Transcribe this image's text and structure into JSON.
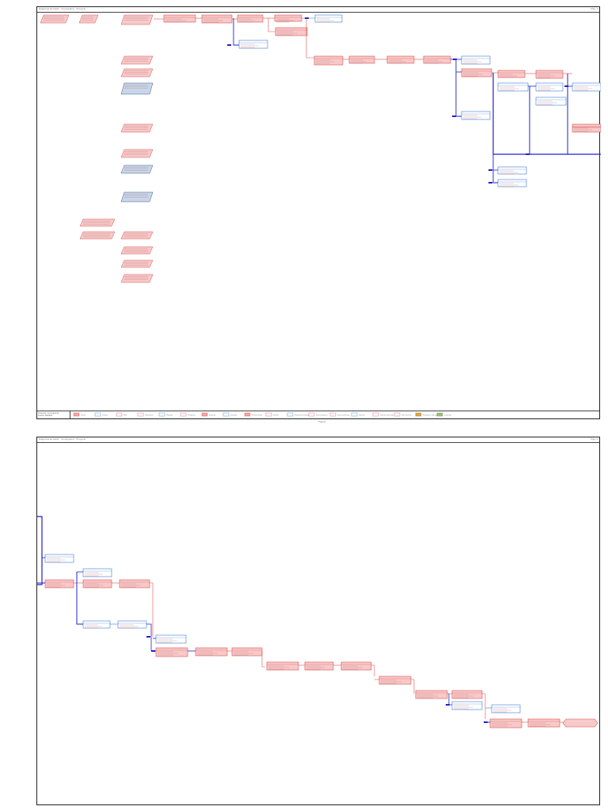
{
  "document": {
    "header_title": "Diagrama de Gantt · Cronograma · Proyecto",
    "page1_number": "Pág. 1",
    "page2_number": "Pág. 2",
    "footer_left_line1": "Proyecto: Cronograma",
    "footer_left_line2": "Fecha: 05/2019",
    "page_label": "Página"
  },
  "legend": [
    {
      "label": "Tarea",
      "color": "#f4a6a6"
    },
    {
      "label": "Crítica",
      "color": "#ffffff"
    },
    {
      "label": "Hito",
      "color": "#ffffff"
    },
    {
      "label": "Resumen",
      "color": "#ffffff"
    },
    {
      "label": "Manual",
      "color": "#ffffff"
    },
    {
      "label": "Progreso",
      "color": "#ffffff"
    },
    {
      "label": "Inactiva",
      "color": "#f4a6a6"
    },
    {
      "label": "Externa",
      "color": "#ffffff"
    },
    {
      "label": "Fecha límite",
      "color": "#f4a6a6"
    },
    {
      "label": "Dividir",
      "color": "#ffffff"
    },
    {
      "label": "Resumen manual",
      "color": "#ffffff"
    },
    {
      "label": "Solo duración",
      "color": "#ffffff"
    },
    {
      "label": "Solo comienzo",
      "color": "#ffffff"
    },
    {
      "label": "Solo fin",
      "color": "#ffffff"
    },
    {
      "label": "Tareas externas",
      "color": "#ffffff"
    },
    {
      "label": "Hito externo",
      "color": "#ffffff"
    },
    {
      "label": "Progreso manual",
      "color": "#f5a623"
    },
    {
      "label": "Leyenda",
      "color": "#7ed07e"
    }
  ]
}
